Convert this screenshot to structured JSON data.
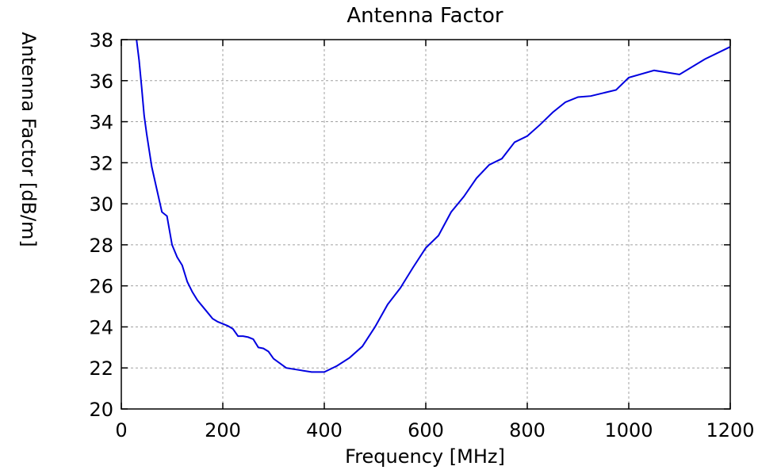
{
  "chart_data": {
    "type": "line",
    "title": "Antenna Factor",
    "xlabel": "Frequency [MHz]",
    "ylabel": "Antenna Factor [dB/m]",
    "xlim": [
      0,
      1200
    ],
    "ylim": [
      20,
      38
    ],
    "xticks": [
      0,
      200,
      400,
      600,
      800,
      1000,
      1200
    ],
    "yticks": [
      20,
      22,
      24,
      26,
      28,
      30,
      32,
      34,
      36,
      38
    ],
    "grid": true,
    "colors": {
      "line": "#0000e0",
      "grid": "#a0a0a0",
      "axes": "#000000"
    },
    "series": [
      {
        "x": [
          30,
          35,
          40,
          45,
          50,
          60,
          70,
          80,
          90,
          100,
          110,
          120,
          130,
          140,
          150,
          160,
          170,
          180,
          190,
          200,
          210,
          220,
          230,
          240,
          250,
          260,
          270,
          280,
          290,
          300,
          325,
          350,
          375,
          400,
          425,
          450,
          475,
          500,
          525,
          550,
          575,
          600,
          625,
          650,
          675,
          700,
          725,
          750,
          775,
          800,
          825,
          850,
          875,
          900,
          925,
          950,
          975,
          1000,
          1050,
          1100,
          1150,
          1200
        ],
        "y": [
          38.0,
          37.0,
          35.7,
          34.3,
          33.4,
          31.8,
          30.7,
          29.6,
          29.4,
          28.0,
          27.4,
          27.0,
          26.2,
          25.7,
          25.3,
          25.0,
          24.7,
          24.4,
          24.25,
          24.15,
          24.05,
          23.9,
          23.55,
          23.55,
          23.5,
          23.4,
          23.0,
          22.95,
          22.8,
          22.45,
          22.0,
          21.9,
          21.8,
          21.8,
          22.1,
          22.5,
          23.05,
          24.0,
          25.1,
          25.9,
          26.9,
          27.85,
          28.45,
          29.6,
          30.35,
          31.25,
          31.9,
          32.2,
          33.0,
          33.3,
          33.85,
          34.45,
          34.95,
          35.2,
          35.25,
          35.4,
          35.55,
          36.15,
          36.5,
          36.3,
          37.05,
          37.65
        ]
      }
    ]
  }
}
